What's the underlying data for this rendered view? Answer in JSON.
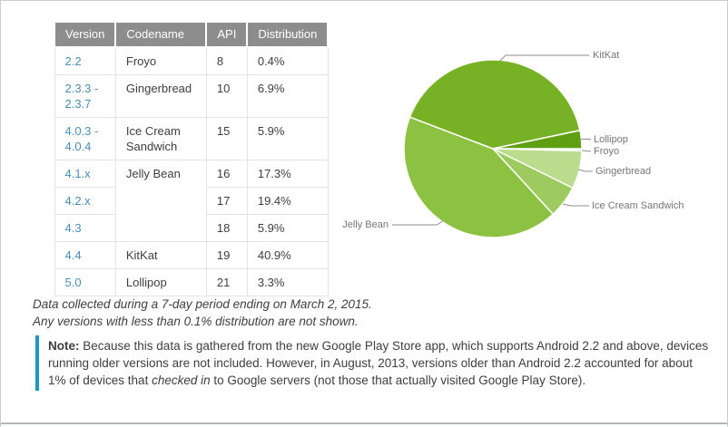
{
  "table": {
    "headers": [
      "Version",
      "Codename",
      "API",
      "Distribution"
    ],
    "rows": [
      {
        "version": "2.2",
        "codename": "Froyo",
        "api": "8",
        "distribution": "0.4%"
      },
      {
        "version": "2.3.3 - 2.3.7",
        "codename": "Gingerbread",
        "api": "10",
        "distribution": "6.9%"
      },
      {
        "version": "4.0.3 - 4.0.4",
        "codename": "Ice Cream Sandwich",
        "api": "15",
        "distribution": "5.9%"
      },
      {
        "version": "4.1.x",
        "codename": "Jelly Bean",
        "api": "16",
        "distribution": "17.3%"
      },
      {
        "version": "4.2.x",
        "api": "17",
        "distribution": "19.4%"
      },
      {
        "version": "4.3",
        "api": "18",
        "distribution": "5.9%"
      },
      {
        "version": "4.4",
        "codename": "KitKat",
        "api": "19",
        "distribution": "40.9%"
      },
      {
        "version": "5.0",
        "codename": "Lollipop",
        "api": "21",
        "distribution": "3.3%"
      }
    ]
  },
  "chart_data": {
    "type": "pie",
    "title": "",
    "legend_position": "outside-callout-labels",
    "start_angle": "east, clockwise",
    "slices": [
      {
        "label": "Froyo",
        "value": 0.4,
        "color": "#dcebc4"
      },
      {
        "label": "Gingerbread",
        "value": 6.9,
        "color": "#b9dc8d"
      },
      {
        "label": "Ice Cream Sandwich",
        "value": 5.9,
        "color": "#9ecb5f"
      },
      {
        "label": "Jelly Bean",
        "value": 42.6,
        "color": "#8dc141"
      },
      {
        "label": "KitKat",
        "value": 40.9,
        "color": "#77b226"
      },
      {
        "label": "Lollipop",
        "value": 3.3,
        "color": "#5fa012"
      }
    ]
  },
  "footnote": {
    "line1": "Data collected during a 7-day period ending on March 2, 2015.",
    "line2": "Any versions with less than 0.1% distribution are not shown."
  },
  "note": {
    "bold_label": "Note:",
    "line1_rest": " Because this data is gathered from the new Google Play Store app, which supports Android 2.2 and above, devices",
    "line2": "running older versions are not included. However, in August, 2013, versions older than Android 2.2 accounted for about",
    "line3_before_italic": "1% of devices that ",
    "line3_italic": "checked in",
    "line3_after_italic": " to Google servers (not those that actually visited Google Play Store)."
  },
  "colors": {
    "table_header_bg": "#8d8d8d",
    "table_border": "#e3e3e3",
    "version_link": "#4a8ebb",
    "note_border": "#2097bc",
    "pie_label_text": "#757575",
    "outer_border": "#cdcdcd"
  }
}
